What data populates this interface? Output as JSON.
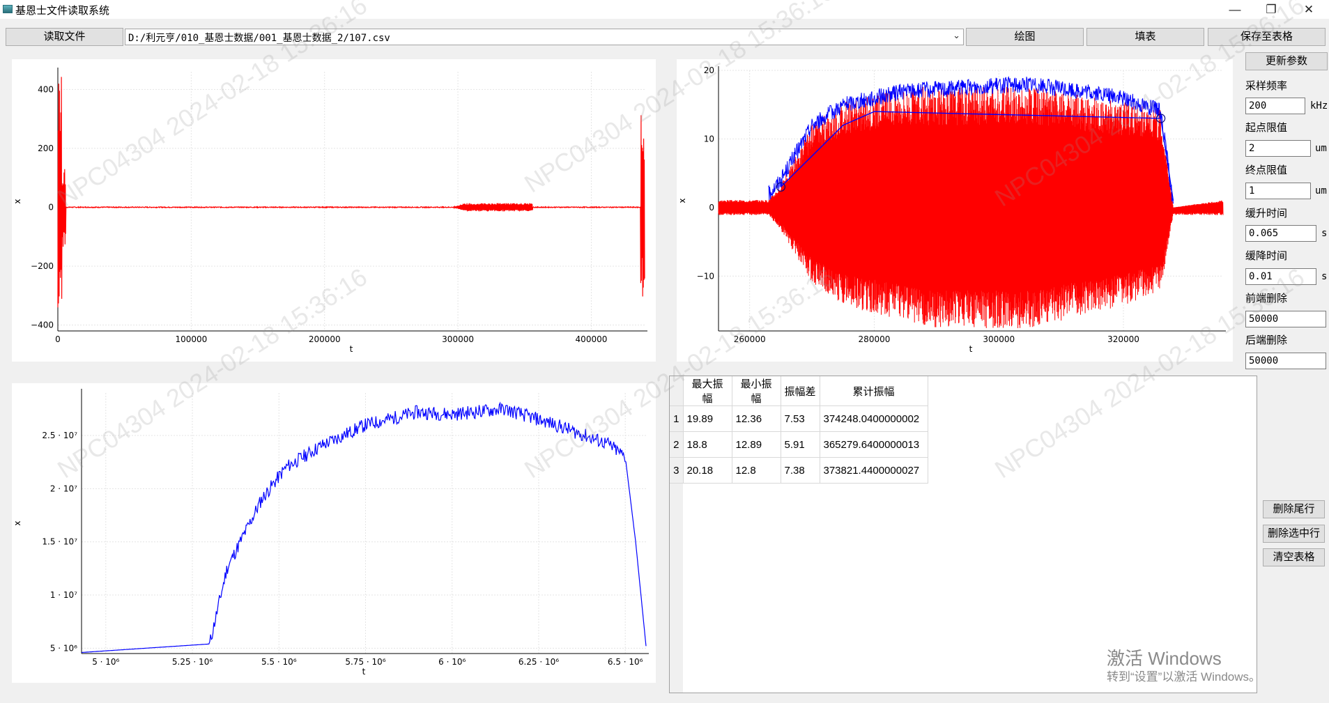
{
  "window": {
    "title": "基恩士文件读取系统",
    "icon": "app-window-icon"
  },
  "toolbar": {
    "read_file": "读取文件",
    "file_path": "D:/利元亨/010_基恩士数据/001_基恩士数据_2/107.csv",
    "plot": "绘图",
    "fill_table": "填表",
    "save_table": "保存至表格"
  },
  "side_panel": {
    "update_params": "更新参数",
    "sample_freq_label": "采样频率",
    "sample_freq_value": "200",
    "sample_freq_unit": "kHz",
    "start_limit_label": "起点限值",
    "start_limit_value": "2",
    "start_limit_unit": "um",
    "end_limit_label": "终点限值",
    "end_limit_value": "1",
    "end_limit_unit": "um",
    "ramp_up_label": "缓升时间",
    "ramp_up_value": "0.065",
    "ramp_up_unit": "s",
    "ramp_down_label": "缓降时间",
    "ramp_down_value": "0.01",
    "ramp_down_unit": "s",
    "front_delete_label": "前端删除",
    "front_delete_value": "50000",
    "back_delete_label": "后端删除",
    "back_delete_value": "50000"
  },
  "table_buttons": {
    "delete_last": "删除尾行",
    "delete_selected": "删除选中行",
    "clear": "清空表格"
  },
  "table": {
    "headers": [
      "最大振幅",
      "最小振幅",
      "振幅差",
      "累计振幅"
    ],
    "rows": [
      {
        "index": "1",
        "cells": [
          "19.89",
          "12.36",
          "7.53",
          "374248.0400000002"
        ]
      },
      {
        "index": "2",
        "cells": [
          "18.8",
          "12.89",
          "5.91",
          "365279.6400000013"
        ]
      },
      {
        "index": "3",
        "cells": [
          "20.18",
          "12.8",
          "7.38",
          "373821.4400000027"
        ]
      }
    ]
  },
  "watermark": {
    "id": "NPC04304",
    "date": "2024-02-18",
    "time": "15:36:16"
  },
  "activation": {
    "title": "激活 Windows",
    "subtitle": "转到“设置”以激活 Windows。"
  },
  "chart_data": [
    {
      "type": "line",
      "title": "",
      "xlabel": "t",
      "ylabel": "x",
      "xlim": [
        0,
        440000
      ],
      "ylim": [
        -420,
        460
      ],
      "xticks": [
        "0",
        "100000",
        "200000",
        "300000",
        "400000"
      ],
      "yticks": [
        "−400",
        "−200",
        "0",
        "200",
        "400"
      ],
      "series": [
        {
          "color": "#ff0000",
          "description_points": [
            [
              0,
              0
            ],
            [
              2000,
              450
            ],
            [
              3000,
              -380
            ],
            [
              5000,
              0
            ],
            [
              295000,
              0
            ],
            [
              300000,
              12
            ],
            [
              355000,
              12
            ],
            [
              356000,
              0
            ],
            [
              438000,
              0
            ],
            [
              439000,
              320
            ],
            [
              440000,
              -230
            ]
          ]
        }
      ],
      "grid": true
    },
    {
      "type": "line",
      "title": "",
      "xlabel": "t",
      "ylabel": "x",
      "xlim": [
        255000,
        336000
      ],
      "ylim": [
        -18,
        20
      ],
      "xticks": [
        "260000",
        "280000",
        "300000",
        "320000"
      ],
      "yticks": [
        "−10",
        "0",
        "10",
        "20"
      ],
      "series": [
        {
          "color": "#ff0000",
          "points": [
            [
              255000,
              1
            ],
            [
              263000,
              1
            ],
            [
              265000,
              3
            ],
            [
              270000,
              11
            ],
            [
              275000,
              14
            ],
            [
              285000,
              16
            ],
            [
              305000,
              16
            ],
            [
              320000,
              14
            ],
            [
              326000,
              13
            ],
            [
              328000,
              0
            ],
            [
              336000,
              1
            ]
          ],
          "lower": [
            [
              255000,
              -1
            ],
            [
              263000,
              -1
            ],
            [
              265000,
              -3
            ],
            [
              270000,
              -10
            ],
            [
              275000,
              -13
            ],
            [
              290000,
              -16
            ],
            [
              305000,
              -16
            ],
            [
              320000,
              -13
            ],
            [
              326000,
              -11
            ],
            [
              328000,
              -1
            ],
            [
              336000,
              -1
            ]
          ]
        },
        {
          "color": "#0000ff",
          "points": [
            [
              263000,
              2
            ],
            [
              265000,
              4
            ],
            [
              270000,
              12
            ],
            [
              275000,
              15
            ],
            [
              285000,
              17
            ],
            [
              305000,
              18
            ],
            [
              320000,
              16
            ],
            [
              326000,
              14
            ],
            [
              328000,
              0.5
            ]
          ]
        }
      ],
      "envelope_line": [
        [
          265000,
          3
        ],
        [
          275000,
          12
        ],
        [
          280000,
          14
        ],
        [
          326000,
          13
        ],
        [
          328000,
          1
        ]
      ],
      "markers": [
        [
          265000,
          3
        ],
        [
          326000,
          13
        ]
      ],
      "grid": true
    },
    {
      "type": "line",
      "title": "",
      "xlabel": "t",
      "ylabel": "x",
      "xlim": [
        4930000.0,
        6560000.0
      ],
      "ylim": [
        4500000.0,
        29000000.0
      ],
      "xticks": [
        "5 · 10⁶",
        "5.25 · 10⁶",
        "5.5 · 10⁶",
        "5.75 · 10⁶",
        "6 · 10⁶",
        "6.25 · 10⁶",
        "6.5 · 10⁶"
      ],
      "yticks": [
        "5 · 10⁶",
        "1 · 10⁷",
        "1.5 · 10⁷",
        "2 · 10⁷",
        "2.5 · 10⁷"
      ],
      "series": [
        {
          "color": "#0000ff",
          "points": [
            [
              4930000.0,
              4600000.0
            ],
            [
              5300000.0,
              5400000.0
            ],
            [
              5350000.0,
              12500000.0
            ],
            [
              5450000.0,
              19000000.0
            ],
            [
              5520000.0,
              22000000.0
            ],
            [
              5620000.0,
              24000000.0
            ],
            [
              5750000.0,
              26000000.0
            ],
            [
              5900000.0,
              27200000.0
            ],
            [
              6000000.0,
              27000000.0
            ],
            [
              6150000.0,
              27500000.0
            ],
            [
              6300000.0,
              26000000.0
            ],
            [
              6450000.0,
              24200000.0
            ],
            [
              6500000.0,
              23000000.0
            ],
            [
              6530000.0,
              15000000.0
            ],
            [
              6560000.0,
              5200000.0
            ]
          ]
        }
      ],
      "grid": true
    }
  ]
}
